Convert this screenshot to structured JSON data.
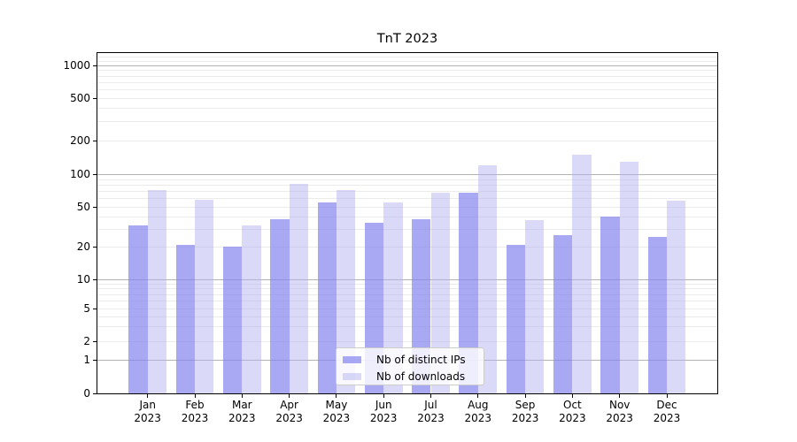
{
  "chart": {
    "y_axis": {
      "tick_labels": [
        "0",
        "1",
        "2",
        "5",
        "10",
        "20",
        "50",
        "100",
        "200",
        "500",
        "1000"
      ],
      "tick_values": [
        0,
        1,
        2,
        5,
        10,
        20,
        50,
        100,
        200,
        500,
        1000
      ],
      "major_grid_values": [
        1,
        10,
        100,
        1000
      ]
    },
    "x_axis": {
      "months": [
        "Jan",
        "Feb",
        "Mar",
        "Apr",
        "May",
        "Jun",
        "Jul",
        "Aug",
        "Sep",
        "Oct",
        "Nov",
        "Dec"
      ],
      "year": "2023"
    },
    "colors": {
      "distinct_ips_bar": "#a9a9f3",
      "downloads_bar": "#dadaf8",
      "major_grid": "#b3b3b3",
      "minor_grid": "#ebebeb",
      "axis": "#000000"
    }
  },
  "chart_data": {
    "type": "bar",
    "title": "TnT 2023",
    "categories": [
      "Jan 2023",
      "Feb 2023",
      "Mar 2023",
      "Apr 2023",
      "May 2023",
      "Jun 2023",
      "Jul 2023",
      "Aug 2023",
      "Sep 2023",
      "Oct 2023",
      "Nov 2023",
      "Dec 2023"
    ],
    "series": [
      {
        "name": "Nb of distinct IPs",
        "color": "#a9a9f3",
        "values": [
          33,
          21,
          20,
          38,
          55,
          35,
          38,
          68,
          21,
          26,
          40,
          25
        ]
      },
      {
        "name": "Nb of downloads",
        "color": "#dadaf8",
        "values": [
          72,
          58,
          33,
          82,
          72,
          55,
          68,
          120,
          37,
          150,
          130,
          57
        ]
      }
    ],
    "xlabel": "",
    "ylabel": "",
    "yscale": "symlog",
    "yticks": [
      0,
      1,
      2,
      5,
      10,
      20,
      50,
      100,
      200,
      500,
      1000
    ],
    "ylim": [
      0,
      1290
    ],
    "grid": "horizontal major and minor gridlines",
    "legend_position": "lower center"
  }
}
